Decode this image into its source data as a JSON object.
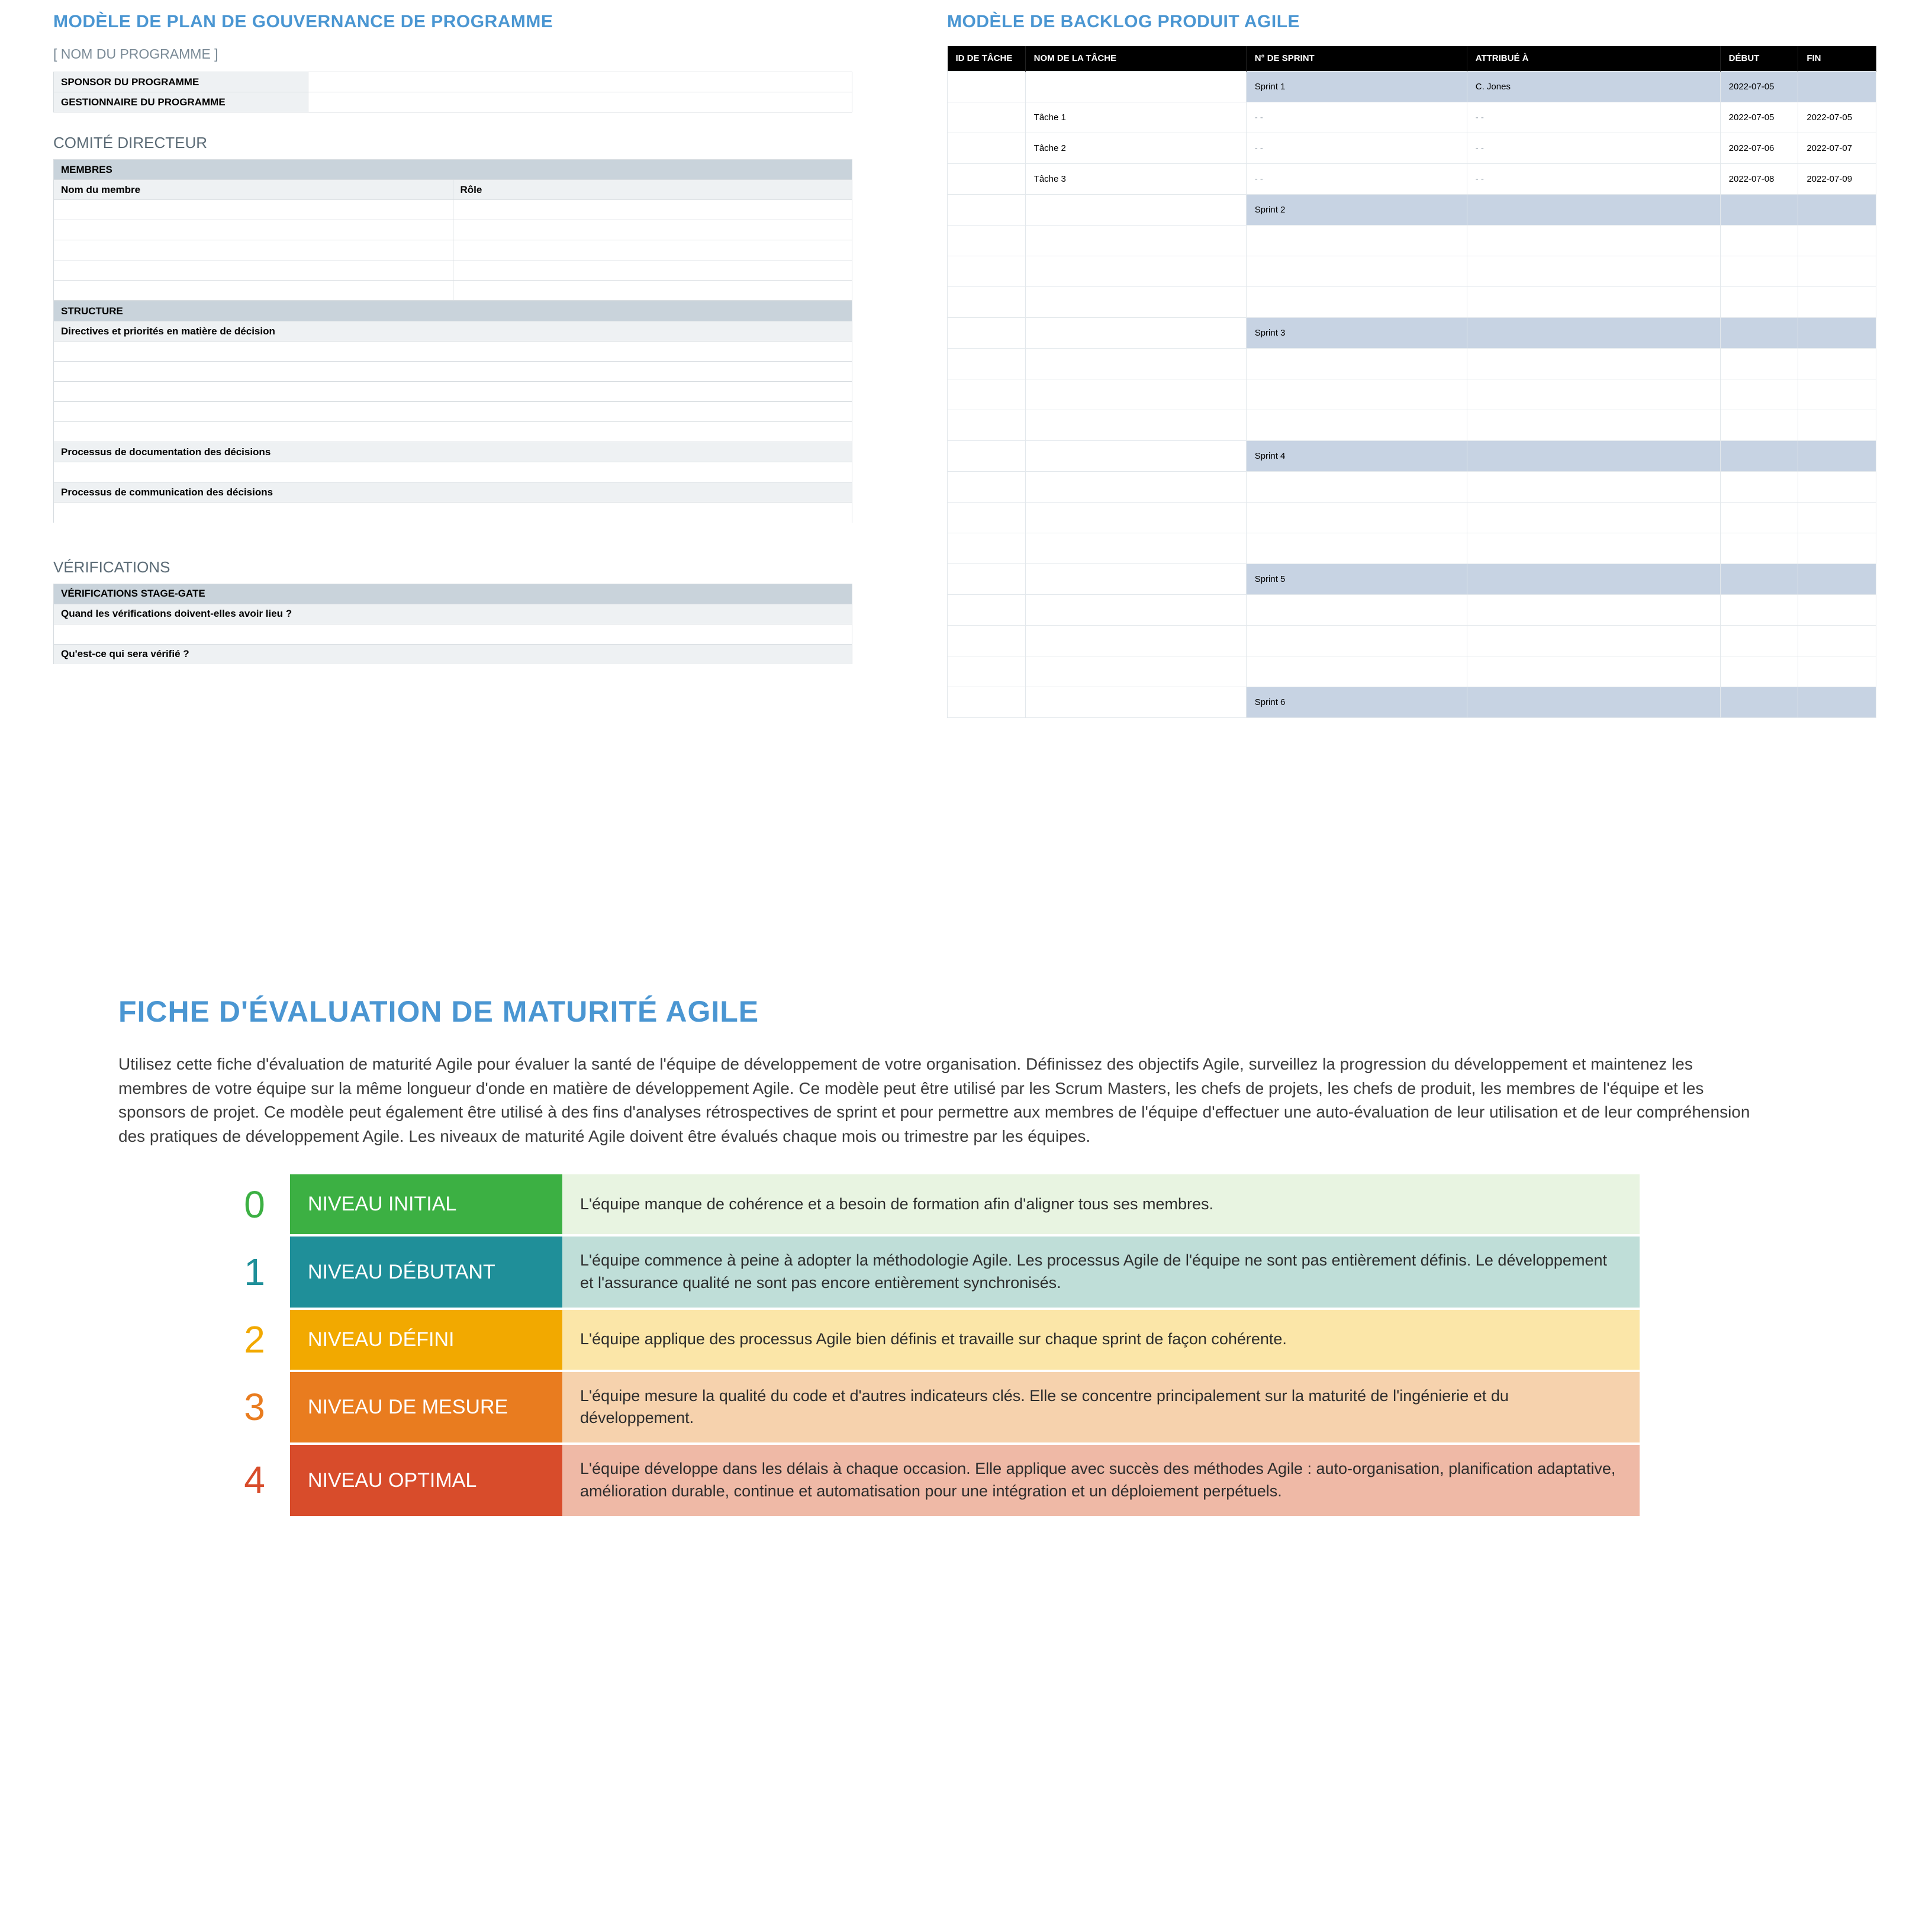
{
  "governance": {
    "title": "MODÈLE DE PLAN DE GOUVERNANCE DE PROGRAMME",
    "program_name": "[ NOM DU PROGRAMME ]",
    "rows": {
      "sponsor_label": "SPONSOR DU PROGRAMME",
      "sponsor_value": "",
      "manager_label": "GESTIONNAIRE DU PROGRAMME",
      "manager_value": ""
    },
    "committee": {
      "section_title": "COMITÉ DIRECTEUR",
      "members_header": "MEMBRES",
      "name_col": "Nom du membre",
      "role_col": "Rôle",
      "blank_rows": 5
    },
    "structure": {
      "header": "STRUCTURE",
      "directives": "Directives et priorités en matière de décision",
      "doc_process": "Processus de documentation des décisions",
      "comm_process": "Processus de communication des décisions"
    },
    "verifications": {
      "section_title": "VÉRIFICATIONS",
      "stage_gate": "VÉRIFICATIONS STAGE-GATE",
      "when": "Quand les vérifications doivent-elles avoir lieu ?",
      "what": "Qu'est-ce qui sera vérifié ?"
    }
  },
  "backlog": {
    "title": "MODÈLE DE BACKLOG PRODUIT AGILE",
    "columns": {
      "id": "ID DE TÂCHE",
      "name": "NOM DE LA TÂCHE",
      "sprint": "N° DE SPRINT",
      "assignee": "ATTRIBUÉ À",
      "start": "DÉBUT",
      "end": "FIN"
    },
    "rows": [
      {
        "type": "sprint",
        "sprint": "Sprint 1",
        "assignee": "C. Jones",
        "start": "2022-07-05",
        "end": ""
      },
      {
        "type": "task",
        "name": "Tâche 1",
        "sprint": "- -",
        "assignee": "- -",
        "start": "2022-07-05",
        "end": "2022-07-05"
      },
      {
        "type": "task",
        "name": "Tâche 2",
        "sprint": "- -",
        "assignee": "- -",
        "start": "2022-07-06",
        "end": "2022-07-07"
      },
      {
        "type": "task",
        "name": "Tâche 3",
        "sprint": "- -",
        "assignee": "- -",
        "start": "2022-07-08",
        "end": "2022-07-09"
      },
      {
        "type": "sprint",
        "sprint": "Sprint 2"
      },
      {
        "type": "blank"
      },
      {
        "type": "blank"
      },
      {
        "type": "blank"
      },
      {
        "type": "sprint",
        "sprint": "Sprint 3"
      },
      {
        "type": "blank"
      },
      {
        "type": "blank"
      },
      {
        "type": "blank"
      },
      {
        "type": "sprint",
        "sprint": "Sprint 4"
      },
      {
        "type": "blank"
      },
      {
        "type": "blank"
      },
      {
        "type": "blank"
      },
      {
        "type": "sprint",
        "sprint": "Sprint 5"
      },
      {
        "type": "blank"
      },
      {
        "type": "blank"
      },
      {
        "type": "blank"
      },
      {
        "type": "sprint",
        "sprint": "Sprint 6"
      }
    ]
  },
  "maturity": {
    "title": "FICHE D'ÉVALUATION DE MATURITÉ AGILE",
    "description": "Utilisez cette fiche d'évaluation de maturité Agile pour évaluer la santé de l'équipe de développement de votre organisation.  Définissez des objectifs Agile, surveillez la progression du développement et maintenez les membres de votre équipe sur la même longueur d'onde en matière de développement Agile. Ce modèle peut être utilisé par les Scrum Masters, les chefs de projets, les chefs de produit, les membres de l'équipe et les sponsors de projet. Ce modèle peut également être utilisé à des fins d'analyses rétrospectives de sprint et pour permettre aux membres de l'équipe d'effectuer une auto-évaluation de leur utilisation et de leur compréhension des pratiques de développement Agile. Les niveaux de maturité Agile doivent être évalués chaque mois ou trimestre par les équipes.",
    "levels": [
      {
        "n": "0",
        "num_color": "#3cb043",
        "label": "NIVEAU INITIAL",
        "label_bg": "#3cb043",
        "desc_bg": "#e8f4e1",
        "desc": "L'équipe manque de cohérence et a besoin de formation afin d'aligner tous ses membres."
      },
      {
        "n": "1",
        "num_color": "#1f8f99",
        "label": "NIVEAU DÉBUTANT",
        "label_bg": "#1f8f99",
        "desc_bg": "#bfded8",
        "desc": "L'équipe commence à peine à adopter la méthodologie Agile. Les processus Agile de l'équipe ne sont pas entièrement définis. Le développement et l'assurance qualité ne sont pas encore entièrement synchronisés."
      },
      {
        "n": "2",
        "num_color": "#f2a900",
        "label": "NIVEAU DÉFINI",
        "label_bg": "#f2a900",
        "desc_bg": "#fbe6a8",
        "desc": "L'équipe applique des processus Agile bien définis et travaille sur chaque sprint de façon cohérente."
      },
      {
        "n": "3",
        "num_color": "#e97c1f",
        "label": "NIVEAU DE MESURE",
        "label_bg": "#e97c1f",
        "desc_bg": "#f6d2ad",
        "desc": "L'équipe mesure la qualité du code et d'autres indicateurs clés. Elle se concentre principalement sur la maturité de l'ingénierie et du développement."
      },
      {
        "n": "4",
        "num_color": "#d84c2b",
        "label": "NIVEAU OPTIMAL",
        "label_bg": "#d84c2b",
        "desc_bg": "#efb9a6",
        "desc": "L'équipe développe dans les délais à chaque occasion. Elle applique avec succès des méthodes Agile : auto-organisation, planification adaptative, amélioration durable, continue et automatisation pour une intégration et un déploiement perpétuels."
      }
    ]
  }
}
